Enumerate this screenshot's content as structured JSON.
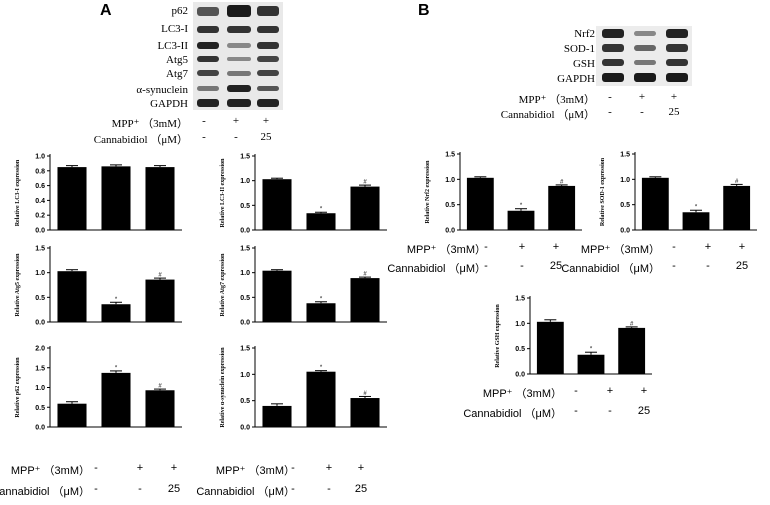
{
  "panel_a": {
    "letter": "A"
  },
  "panel_b": {
    "letter": "B"
  },
  "blot_a": {
    "labels": [
      "p62",
      "LC3-I",
      "LC3-II",
      "Atg5",
      "Atg7",
      "α-synuclein",
      "GAPDH"
    ],
    "treatment": {
      "mpp_label": "MPP⁺ （3mM）",
      "cbd_label": "Cannabidiol （μM）",
      "mpp": [
        "-",
        "+",
        "+"
      ],
      "cbd": [
        "-",
        "-",
        "25"
      ]
    }
  },
  "blot_b": {
    "labels": [
      "Nrf2",
      "SOD-1",
      "GSH",
      "GAPDH"
    ],
    "treatment": {
      "mpp_label": "MPP⁺ （3mM）",
      "cbd_label": "Cannabidiol （μM）",
      "mpp": [
        "-",
        "+",
        "+"
      ],
      "cbd": [
        "-",
        "-",
        "25"
      ]
    }
  },
  "bottom_a_left": {
    "mpp_label": "MPP⁺ （3mM）",
    "cbd_label": "Cannabidiol （μM）",
    "mpp": [
      "-",
      "+",
      "+"
    ],
    "cbd": [
      "-",
      "-",
      "25"
    ]
  },
  "bottom_a_right": {
    "mpp_label": "MPP⁺ （3mM）",
    "cbd_label": "Cannabidiol （μM）",
    "mpp": [
      "-",
      "+",
      "+"
    ],
    "cbd": [
      "-",
      "-",
      "25"
    ]
  },
  "treat_nrf2": {
    "mpp_label": "MPP⁺ （3mM）",
    "cbd_label": "Cannabidiol （μM）",
    "mpp": [
      "-",
      "+",
      "+"
    ],
    "cbd": [
      "-",
      "-",
      "25"
    ]
  },
  "treat_sod1": {
    "mpp_label": "MPP⁺ （3mM）",
    "cbd_label": "Cannabidiol （μM）",
    "mpp": [
      "-",
      "+",
      "+"
    ],
    "cbd": [
      "-",
      "-",
      "25"
    ]
  },
  "treat_gsh": {
    "mpp_label": "MPP⁺ （3mM）",
    "cbd_label": "Cannabidiol （μM）",
    "mpp": [
      "-",
      "+",
      "+"
    ],
    "cbd": [
      "-",
      "-",
      "25"
    ]
  },
  "chart_data": [
    {
      "id": "lc3i",
      "type": "bar",
      "ylabel": "Relative LC3-I expression",
      "values": [
        0.85,
        0.86,
        0.85
      ],
      "errors": [
        0.02,
        0.02,
        0.02
      ],
      "marks": [
        "",
        "",
        ""
      ],
      "ylim": [
        0,
        1.0
      ],
      "ticks": [
        0,
        0.2,
        0.4,
        0.6,
        0.8,
        1.0
      ],
      "tick_labels": [
        "0.0",
        "0.2",
        "0.4",
        "0.6",
        "0.8",
        "1.0"
      ]
    },
    {
      "id": "lc3ii",
      "type": "bar",
      "ylabel": "Relative LC3-II expression",
      "values": [
        1.03,
        0.34,
        0.88
      ],
      "errors": [
        0.02,
        0.02,
        0.03
      ],
      "marks": [
        "",
        "*",
        "#"
      ],
      "ylim": [
        0,
        1.5
      ],
      "ticks": [
        0,
        0.5,
        1.0,
        1.5
      ],
      "tick_labels": [
        "0.0",
        "0.5",
        "1.0",
        "1.5"
      ]
    },
    {
      "id": "atg5",
      "type": "bar",
      "ylabel": "Relative Atg5 expression",
      "values": [
        1.03,
        0.36,
        0.86
      ],
      "errors": [
        0.03,
        0.04,
        0.03
      ],
      "marks": [
        "",
        "*",
        "#"
      ],
      "ylim": [
        0,
        1.5
      ],
      "ticks": [
        0,
        0.5,
        1.0,
        1.5
      ],
      "tick_labels": [
        "0.0",
        "0.5",
        "1.0",
        "1.5"
      ]
    },
    {
      "id": "atg7",
      "type": "bar",
      "ylabel": "Relative Atg7 expression",
      "values": [
        1.04,
        0.38,
        0.89
      ],
      "errors": [
        0.02,
        0.03,
        0.02
      ],
      "marks": [
        "",
        "*",
        "#"
      ],
      "ylim": [
        0,
        1.5
      ],
      "ticks": [
        0,
        0.5,
        1.0,
        1.5
      ],
      "tick_labels": [
        "0.0",
        "0.5",
        "1.0",
        "1.5"
      ]
    },
    {
      "id": "p62",
      "type": "bar",
      "ylabel": "Relative p62 expression",
      "values": [
        0.59,
        1.37,
        0.93
      ],
      "errors": [
        0.05,
        0.05,
        0.03
      ],
      "marks": [
        "",
        "*",
        "#"
      ],
      "ylim": [
        0,
        2.0
      ],
      "ticks": [
        0,
        0.5,
        1.0,
        1.5,
        2.0
      ],
      "tick_labels": [
        "0.0",
        "0.5",
        "1.0",
        "1.5",
        "2.0"
      ]
    },
    {
      "id": "asyn",
      "type": "bar",
      "ylabel": "Relative α-synuclein expression",
      "values": [
        0.4,
        1.05,
        0.55
      ],
      "errors": [
        0.04,
        0.02,
        0.03
      ],
      "marks": [
        "",
        "*",
        "#"
      ],
      "ylim": [
        0,
        1.5
      ],
      "ticks": [
        0,
        0.5,
        1.0,
        1.5
      ],
      "tick_labels": [
        "0.0",
        "0.5",
        "1.0",
        "1.5"
      ]
    },
    {
      "id": "nrf2",
      "type": "bar",
      "ylabel": "Relative Nrf2 expression",
      "values": [
        1.03,
        0.38,
        0.87
      ],
      "errors": [
        0.02,
        0.04,
        0.02
      ],
      "marks": [
        "",
        "*",
        "#"
      ],
      "ylim": [
        0,
        1.5
      ],
      "ticks": [
        0,
        0.5,
        1.0,
        1.5
      ],
      "tick_labels": [
        "0.0",
        "0.5",
        "1.0",
        "1.5"
      ]
    },
    {
      "id": "sod1",
      "type": "bar",
      "ylabel": "Relative SOD-1 expression",
      "values": [
        1.03,
        0.35,
        0.87
      ],
      "errors": [
        0.02,
        0.04,
        0.03
      ],
      "marks": [
        "",
        "*",
        "#"
      ],
      "ylim": [
        0,
        1.5
      ],
      "ticks": [
        0,
        0.5,
        1.0,
        1.5
      ],
      "tick_labels": [
        "0.0",
        "0.5",
        "1.0",
        "1.5"
      ]
    },
    {
      "id": "gsh",
      "type": "bar",
      "ylabel": "Relative GSH expression",
      "values": [
        1.03,
        0.38,
        0.91
      ],
      "errors": [
        0.04,
        0.05,
        0.02
      ],
      "marks": [
        "",
        "*",
        "#"
      ],
      "ylim": [
        0,
        1.5
      ],
      "ticks": [
        0,
        0.5,
        1.0,
        1.5
      ],
      "tick_labels": [
        "0.0",
        "0.5",
        "1.0",
        "1.5"
      ]
    }
  ]
}
